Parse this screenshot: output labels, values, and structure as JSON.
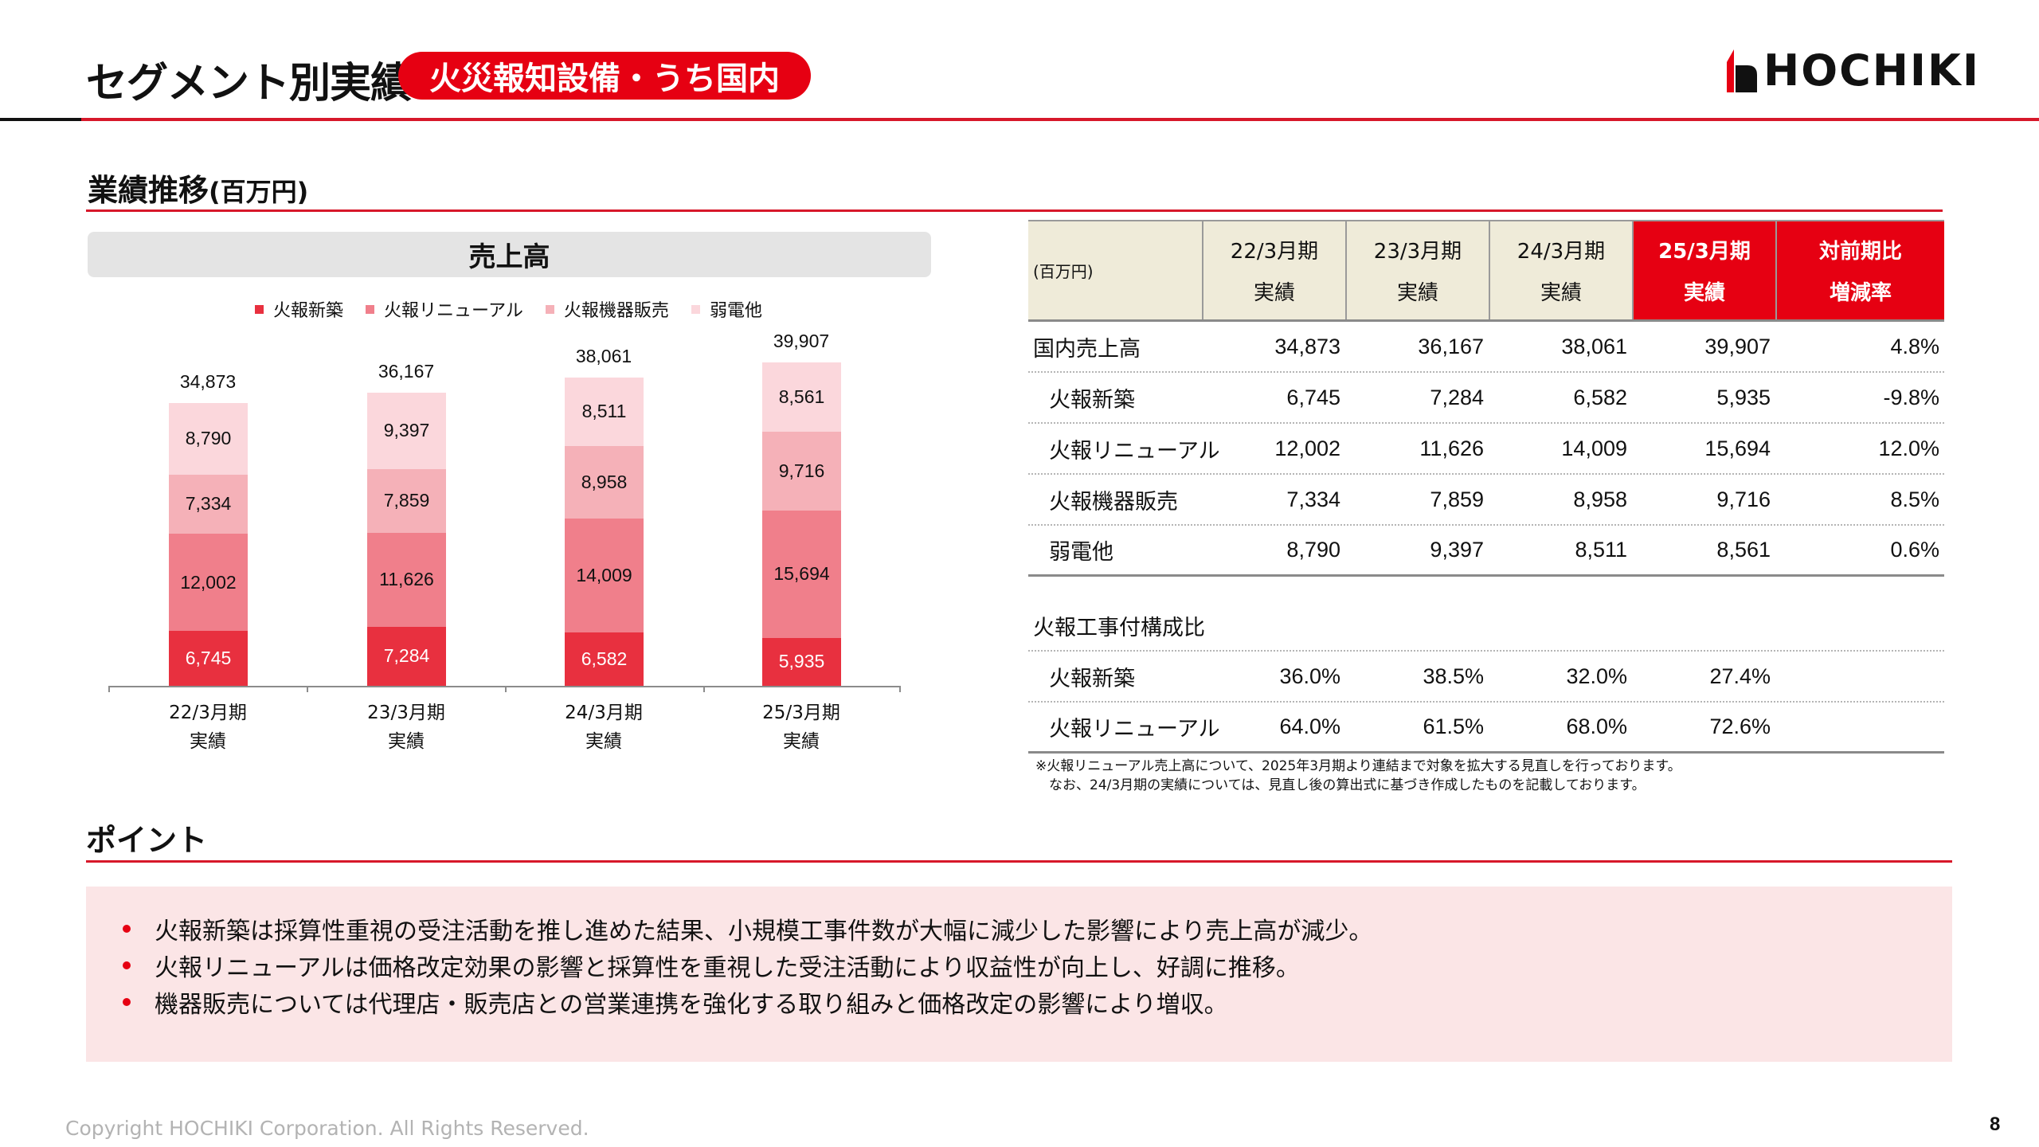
{
  "header": {
    "title": "セグメント別実績",
    "segment_pill": "火災報知設備・うち国内",
    "logo_text": "HOCHIKI"
  },
  "section": {
    "title": "業績推移",
    "unit": "(百万円)"
  },
  "chart": {
    "title": "売上高",
    "legend": [
      {
        "label": "火報新築",
        "color": "#e8303f"
      },
      {
        "label": "火報リニューアル",
        "color": "#f07f8b"
      },
      {
        "label": "火報機器販売",
        "color": "#f5b1b8"
      },
      {
        "label": "弱電他",
        "color": "#fbd7dc"
      }
    ],
    "bars": [
      {
        "period": "22/3月期",
        "sub": "実績",
        "total": "34,873",
        "segments": [
          "6,745",
          "12,002",
          "7,334",
          "8,790"
        ]
      },
      {
        "period": "23/3月期",
        "sub": "実績",
        "total": "36,167",
        "segments": [
          "7,284",
          "11,626",
          "7,859",
          "9,397"
        ]
      },
      {
        "period": "24/3月期",
        "sub": "実績",
        "total": "38,061",
        "segments": [
          "6,582",
          "14,009",
          "8,958",
          "8,511"
        ]
      },
      {
        "period": "25/3月期",
        "sub": "実績",
        "total": "39,907",
        "segments": [
          "5,935",
          "15,694",
          "9,716",
          "8,561"
        ]
      }
    ]
  },
  "chart_data": {
    "type": "bar",
    "stacked": true,
    "title": "売上高",
    "xlabel": "",
    "ylabel": "百万円",
    "categories": [
      "22/3月期 実績",
      "23/3月期 実績",
      "24/3月期 実績",
      "25/3月期 実績"
    ],
    "series": [
      {
        "name": "火報新築",
        "values": [
          6745,
          7284,
          6582,
          5935
        ],
        "color": "#e8303f"
      },
      {
        "name": "火報リニューアル",
        "values": [
          12002,
          11626,
          14009,
          15694
        ],
        "color": "#f07f8b"
      },
      {
        "name": "火報機器販売",
        "values": [
          7334,
          7859,
          8958,
          9716
        ],
        "color": "#f5b1b8"
      },
      {
        "name": "弱電他",
        "values": [
          8790,
          9397,
          8511,
          8561
        ],
        "color": "#fbd7dc"
      }
    ],
    "totals": [
      34873,
      36167,
      38061,
      39907
    ],
    "legend_position": "top",
    "grid": false
  },
  "table": {
    "unit": "(百万円)",
    "columns": [
      {
        "top": "22/3月期",
        "bottom": "実績"
      },
      {
        "top": "23/3月期",
        "bottom": "実績"
      },
      {
        "top": "24/3月期",
        "bottom": "実績"
      },
      {
        "top": "25/3月期",
        "bottom": "実績"
      },
      {
        "top": "対前期比",
        "bottom": "増減率"
      }
    ],
    "rows": [
      {
        "label": "国内売上高",
        "values": [
          "34,873",
          "36,167",
          "38,061",
          "39,907",
          "4.8%"
        ]
      },
      {
        "label": "火報新築",
        "values": [
          "6,745",
          "7,284",
          "6,582",
          "5,935",
          "-9.8%"
        ]
      },
      {
        "label": "火報リニューアル",
        "values": [
          "12,002",
          "11,626",
          "14,009",
          "15,694",
          "12.0%"
        ]
      },
      {
        "label": "火報機器販売",
        "values": [
          "7,334",
          "7,859",
          "8,958",
          "9,716",
          "8.5%"
        ]
      },
      {
        "label": "弱電他",
        "values": [
          "8,790",
          "9,397",
          "8,511",
          "8,561",
          "0.6%"
        ]
      }
    ],
    "ratio_header": "火報工事付構成比",
    "ratio_rows": [
      {
        "label": "火報新築",
        "values": [
          "36.0%",
          "38.5%",
          "32.0%",
          "27.4%",
          ""
        ]
      },
      {
        "label": "火報リニューアル",
        "values": [
          "64.0%",
          "61.5%",
          "68.0%",
          "72.6%",
          ""
        ]
      }
    ],
    "note_lines": [
      "※火報リニューアル売上高について、2025年3月期より連結まで対象を拡大する見直しを行っております。",
      "　なお、24/3月期の実績については、見直し後の算出式に基づき作成したものを記載しております。"
    ]
  },
  "points": {
    "title": "ポイント",
    "items": [
      "火報新築は採算性重視の受注活動を推し進めた結果、小規模工事件数が大幅に減少した影響により売上高が減少。",
      "火報リニューアルは価格改定効果の影響と採算性を重視した受注活動により収益性が向上し、好調に推移。",
      "機器販売については代理店・販売店との営業連携を強化する取り組みと価格改定の影響により増収。"
    ]
  },
  "footer": {
    "copyright": "Copyright HOCHIKI Corporation. All Rights Reserved.",
    "page_number": "8"
  },
  "colors": {
    "accent_red": "#e60012",
    "line_red": "#d7182a",
    "table_header_beige": "#efebd9",
    "points_bg": "#fbe5e6"
  }
}
